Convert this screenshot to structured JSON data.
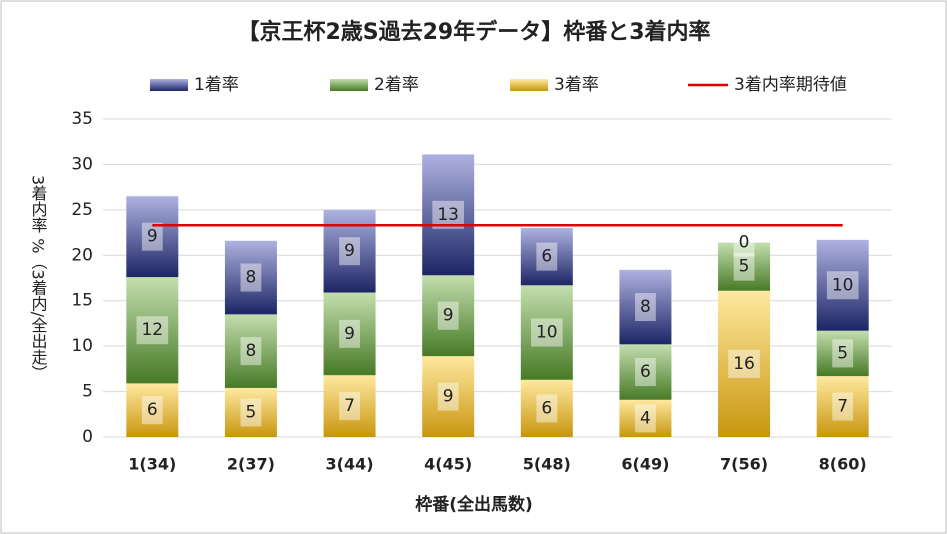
{
  "chart_data": {
    "type": "stacked-bar",
    "title": "【京王杯2歳S過去29年データ】枠番と3着内率",
    "x_label": "枠番(全出馬数)",
    "y_label": "3着内率 %（3着内/全出走）",
    "categories": [
      "1(34)",
      "2(37)",
      "3(44)",
      "4(45)",
      "5(48)",
      "6(49)",
      "7(56)",
      "8(60)"
    ],
    "series": [
      {
        "name": "3着率",
        "colors": [
          "#ffe9a0",
          "#c8960e"
        ],
        "values": [
          5.9,
          5.4,
          6.8,
          8.9,
          6.3,
          4.1,
          16.1,
          6.7
        ],
        "counts": [
          6,
          5,
          7,
          9,
          6,
          4,
          16,
          7
        ]
      },
      {
        "name": "2着率",
        "colors": [
          "#c3deae",
          "#477a26"
        ],
        "values": [
          11.7,
          8.1,
          9.1,
          8.9,
          10.4,
          6.1,
          5.3,
          5.0
        ],
        "counts": [
          12,
          8,
          9,
          9,
          10,
          6,
          5,
          5
        ]
      },
      {
        "name": "1着率",
        "colors": [
          "#aeb2e0",
          "#1d2565"
        ],
        "values": [
          8.9,
          8.1,
          9.1,
          13.3,
          6.3,
          8.2,
          0,
          10.0
        ],
        "counts": [
          9,
          8,
          9,
          13,
          6,
          8,
          0,
          10
        ]
      }
    ],
    "reference_line": {
      "name": "3着内率期待値",
      "color": "#e00000",
      "value": 23.3
    },
    "legend_order": [
      2,
      1,
      0
    ],
    "ylim": [
      0,
      35
    ],
    "yticks": [
      0,
      5,
      10,
      15,
      20,
      25,
      30,
      35
    ],
    "grid": true
  }
}
